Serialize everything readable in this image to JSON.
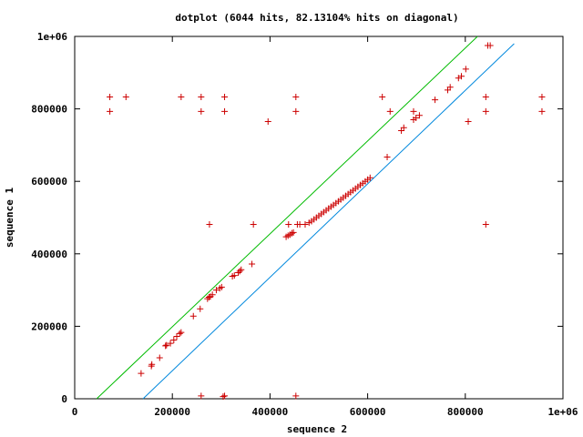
{
  "chart_data": {
    "type": "scatter",
    "title": "dotplot (6044 hits, 82.13104% hits on diagonal)",
    "xlabel": "sequence 2",
    "ylabel": "sequence 1",
    "xlim": [
      0,
      1000000
    ],
    "ylim": [
      0,
      1000000
    ],
    "xticks": [
      0,
      200000,
      400000,
      600000,
      800000,
      1000000
    ],
    "yticks": [
      0,
      200000,
      400000,
      600000,
      800000,
      1000000
    ],
    "xtick_labels": [
      "0",
      "200000",
      "400000",
      "600000",
      "800000",
      "1e+06"
    ],
    "ytick_labels": [
      "0",
      "200000",
      "400000",
      "600000",
      "800000",
      "1e+06"
    ],
    "grid": false,
    "legend": "none",
    "colors": {
      "points": "#cc0000",
      "upper_line": "#00bb00",
      "lower_line": "#0088dd",
      "axis": "#000000"
    },
    "lines": [
      {
        "x": [
          45000,
          825000
        ],
        "y": [
          0,
          1000000
        ]
      },
      {
        "x": [
          140000,
          900000
        ],
        "y": [
          0,
          980000
        ]
      }
    ],
    "series": [
      {
        "marker": "+",
        "points": [
          [
            72000,
            833000
          ],
          [
            72000,
            793000
          ],
          [
            105000,
            833000
          ],
          [
            218000,
            833000
          ],
          [
            259000,
            833000
          ],
          [
            259000,
            793000
          ],
          [
            307000,
            833000
          ],
          [
            307000,
            793000
          ],
          [
            396000,
            765000
          ],
          [
            453000,
            833000
          ],
          [
            453000,
            793000
          ],
          [
            630000,
            833000
          ],
          [
            646000,
            793000
          ],
          [
            694000,
            793000
          ],
          [
            842000,
            833000
          ],
          [
            842000,
            793000
          ],
          [
            957000,
            833000
          ],
          [
            957000,
            793000
          ],
          [
            136000,
            70000
          ],
          [
            157000,
            90000
          ],
          [
            158000,
            95000
          ],
          [
            174000,
            113000
          ],
          [
            186000,
            146000
          ],
          [
            188000,
            148000
          ],
          [
            196000,
            153000
          ],
          [
            203000,
            162000
          ],
          [
            209000,
            172000
          ],
          [
            215000,
            180000
          ],
          [
            218000,
            183000
          ],
          [
            243000,
            228000
          ],
          [
            257000,
            248000
          ],
          [
            272000,
            276000
          ],
          [
            275000,
            280000
          ],
          [
            278000,
            282000
          ],
          [
            282000,
            287000
          ],
          [
            290000,
            300000
          ],
          [
            297000,
            305000
          ],
          [
            301000,
            308000
          ],
          [
            323000,
            338000
          ],
          [
            327000,
            340000
          ],
          [
            335000,
            348000
          ],
          [
            338000,
            352000
          ],
          [
            341000,
            356000
          ],
          [
            363000,
            372000
          ],
          [
            276000,
            481000
          ],
          [
            366000,
            481000
          ],
          [
            438000,
            481000
          ],
          [
            456000,
            481000
          ],
          [
            461000,
            481000
          ],
          [
            433000,
            447000
          ],
          [
            437000,
            450000
          ],
          [
            441000,
            453000
          ],
          [
            445000,
            457000
          ],
          [
            448000,
            459000
          ],
          [
            472000,
            481000
          ],
          [
            480000,
            486000
          ],
          [
            485000,
            490000
          ],
          [
            490000,
            495000
          ],
          [
            495000,
            500000
          ],
          [
            500000,
            505000
          ],
          [
            505000,
            510000
          ],
          [
            510000,
            515000
          ],
          [
            515000,
            520000
          ],
          [
            520000,
            525000
          ],
          [
            525000,
            530000
          ],
          [
            530000,
            535000
          ],
          [
            535000,
            540000
          ],
          [
            540000,
            545000
          ],
          [
            545000,
            550000
          ],
          [
            550000,
            555000
          ],
          [
            555000,
            560000
          ],
          [
            560000,
            565000
          ],
          [
            565000,
            570000
          ],
          [
            570000,
            575000
          ],
          [
            575000,
            580000
          ],
          [
            580000,
            585000
          ],
          [
            585000,
            590000
          ],
          [
            590000,
            595000
          ],
          [
            595000,
            600000
          ],
          [
            600000,
            605000
          ],
          [
            605000,
            610000
          ],
          [
            640000,
            667000
          ],
          [
            669000,
            740000
          ],
          [
            674000,
            748000
          ],
          [
            694000,
            770000
          ],
          [
            699000,
            775000
          ],
          [
            706000,
            782000
          ],
          [
            738000,
            825000
          ],
          [
            764000,
            852000
          ],
          [
            769000,
            860000
          ],
          [
            786000,
            885000
          ],
          [
            792000,
            890000
          ],
          [
            801000,
            910000
          ],
          [
            806000,
            765000
          ],
          [
            846000,
            975000
          ],
          [
            851000,
            975000
          ],
          [
            842000,
            481000
          ],
          [
            259000,
            8000
          ],
          [
            307000,
            8000
          ],
          [
            453000,
            8000
          ],
          [
            304000,
            6000
          ]
        ]
      }
    ]
  }
}
